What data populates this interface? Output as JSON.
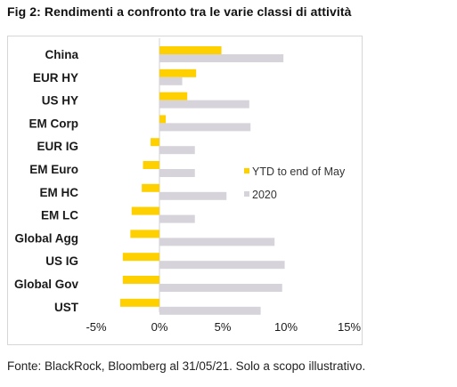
{
  "title": "Fig 2: Rendimenti a confronto tra le varie classi di attività",
  "source": "Fonte: BlackRock, Bloomberg al 31/05/21. Solo a scopo illustrativo.",
  "colors": {
    "ytd": "#ffd000",
    "y2020": "#d6d3da",
    "zero_line": "#d0d0d0"
  },
  "chart_data": {
    "type": "bar",
    "orientation": "horizontal",
    "categories": [
      "China",
      "EUR HY",
      "US HY",
      "EM Corp",
      "EUR IG",
      "EM Euro",
      "EM HC",
      "EM LC",
      "Global Agg",
      "US IG",
      "Global Gov",
      "UST"
    ],
    "series": [
      {
        "name": "YTD to end of May",
        "values": [
          4.9,
          2.9,
          2.2,
          0.5,
          -0.7,
          -1.3,
          -1.4,
          -2.2,
          -2.3,
          -2.9,
          -2.9,
          -3.1
        ]
      },
      {
        "name": "2020",
        "values": [
          9.8,
          1.8,
          7.1,
          7.2,
          2.8,
          2.8,
          5.3,
          2.8,
          9.1,
          9.9,
          9.7,
          8.0
        ]
      }
    ],
    "xlim": [
      -5,
      15
    ],
    "xticks": [
      "-5%",
      "0%",
      "5%",
      "10%",
      "15%"
    ],
    "xtick_values": [
      -5,
      0,
      5,
      10,
      15
    ],
    "legend_position": "right",
    "grid": false
  }
}
